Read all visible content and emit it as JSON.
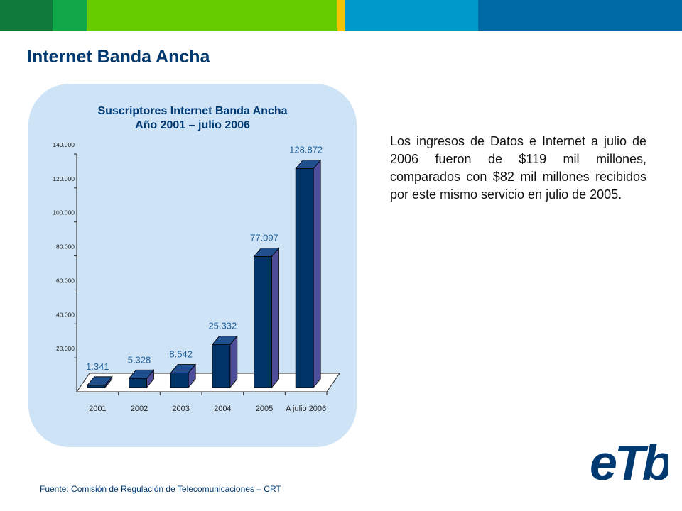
{
  "header": {
    "band_colors": [
      "#0f7a3a",
      "#11a84a",
      "#66cc00",
      "#f2c400",
      "#0099cc",
      "#006aa6"
    ]
  },
  "page": {
    "title": "Internet Banda Ancha"
  },
  "body_text": "Los ingresos de Datos e Internet a julio de 2006 fueron de $119 mil millones, comparados con $82 mil millones recibidos por este mismo servicio en julio de 2005.",
  "source": "Fuente: Comisión de Regulación de Telecomunicaciones – CRT",
  "logo": {
    "text": "eTb",
    "color": "#003a70"
  },
  "chart_data": {
    "type": "bar",
    "title": "Suscriptores Internet Banda Ancha",
    "subtitle": "Año 2001 – julio 2006",
    "categories": [
      "2001",
      "2002",
      "2003",
      "2004",
      "2005",
      "A julio 2006"
    ],
    "values": [
      1341,
      5328,
      8542,
      25332,
      77097,
      128872
    ],
    "data_labels": [
      "1.341",
      "5.328",
      "8.542",
      "25.332",
      "77.097",
      "128.872"
    ],
    "y_ticks": [
      20000,
      40000,
      60000,
      80000,
      100000,
      120000,
      140000
    ],
    "y_tick_labels": [
      "20.000",
      "40.000",
      "60.000",
      "80.000",
      "100.000",
      "120.000",
      "140.000"
    ],
    "ylim": [
      0,
      140000
    ],
    "xlabel": "",
    "ylabel": "",
    "grid": false,
    "legend": "none",
    "colors": {
      "bar_front": "#003366",
      "bar_side": "#4d4d99",
      "bar_top": "#1f4f8c",
      "label": "#1f5f99"
    }
  }
}
